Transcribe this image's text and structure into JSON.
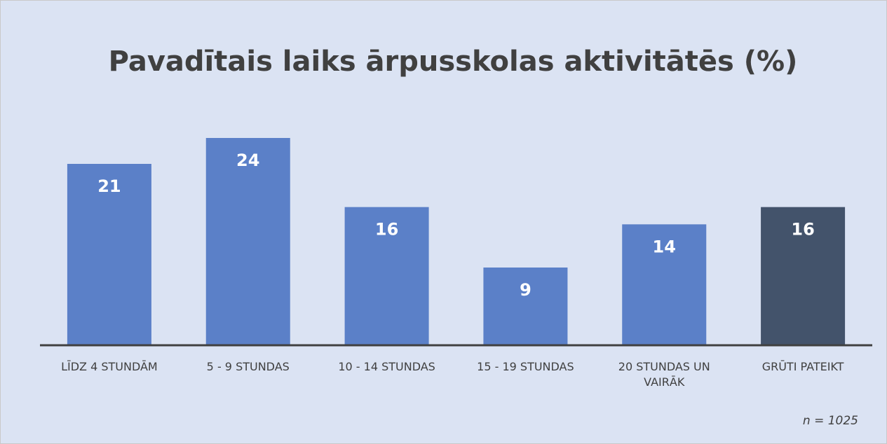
{
  "chart_data": {
    "type": "bar",
    "title": "Pavadītais laiks ārpusskolas aktivitātēs (%)",
    "categories": [
      "LĪDZ 4 STUNDĀM",
      "5 - 9 STUNDAS",
      "10 - 14 STUNDAS",
      "15 - 19 STUNDAS",
      "20 STUNDAS UN VAIRĀK",
      "GRŪTI PATEIKT"
    ],
    "values": [
      21,
      24,
      16,
      9,
      14,
      16
    ],
    "colors": [
      "#5b80c8",
      "#5b80c8",
      "#5b80c8",
      "#5b80c8",
      "#5b80c8",
      "#43536b"
    ],
    "annotation": "n = 1025"
  }
}
